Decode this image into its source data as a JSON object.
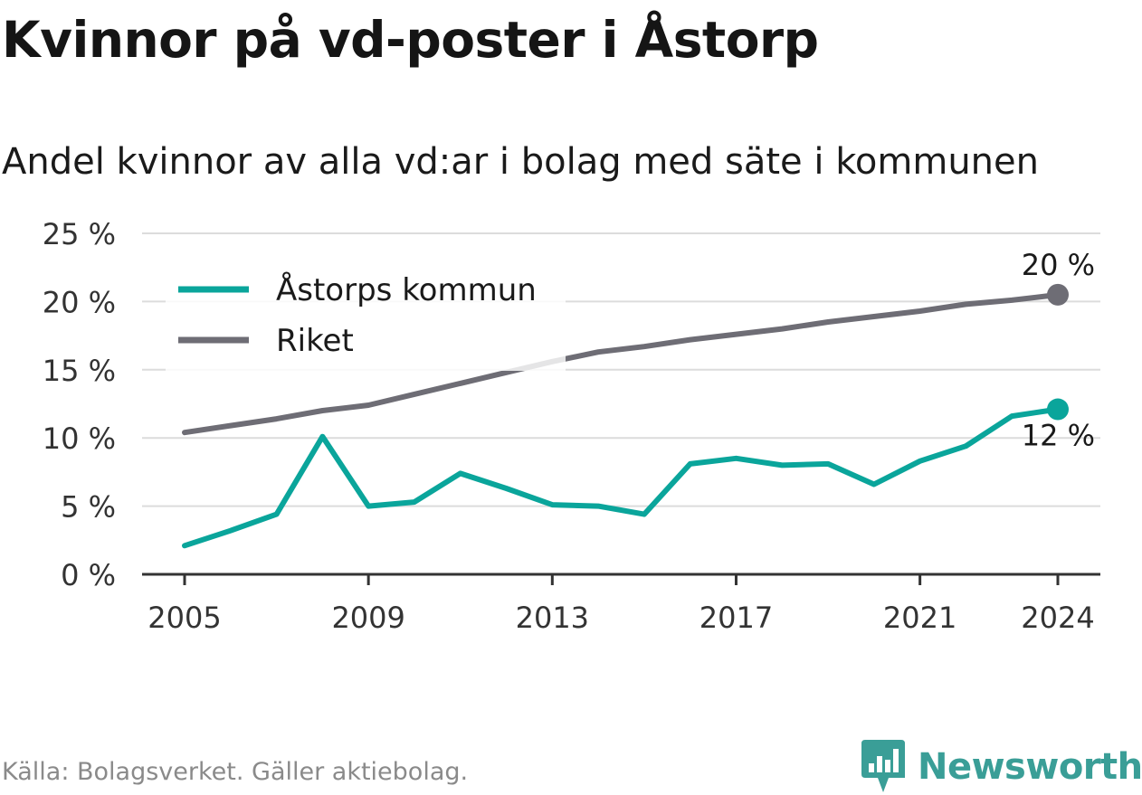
{
  "title": "Kvinnor på vd-poster i Åstorp",
  "subtitle": "Andel kvinnor av alla vd:ar i bolag med säte i kommunen",
  "source": "Källa: Bolagsverket. Gäller aktiebolag.",
  "brand": {
    "name": "Newsworthy",
    "logo_icon": "newsworthy-bar-chart-icon",
    "color": "#3a9e97"
  },
  "chart_data": {
    "type": "line",
    "x": [
      2005,
      2006,
      2007,
      2008,
      2009,
      2010,
      2011,
      2012,
      2013,
      2014,
      2015,
      2016,
      2017,
      2018,
      2019,
      2020,
      2021,
      2022,
      2023,
      2024
    ],
    "xticks": [
      2005,
      2009,
      2013,
      2017,
      2021,
      2024
    ],
    "ylim": [
      0,
      25
    ],
    "yticks": [
      0,
      5,
      10,
      15,
      20,
      25
    ],
    "ytick_labels": [
      "0 %",
      "5 %",
      "10 %",
      "15 %",
      "20 %",
      "25 %"
    ],
    "grid": true,
    "legend": "top-left",
    "series": [
      {
        "name": "Åstorps kommun",
        "color": "#0aa59b",
        "end_label": "12 %",
        "values": [
          2.1,
          3.2,
          4.4,
          10.1,
          5.0,
          5.3,
          7.4,
          6.3,
          5.1,
          5.0,
          4.4,
          8.1,
          8.5,
          8.0,
          8.1,
          6.6,
          8.3,
          9.4,
          11.6,
          12.1
        ]
      },
      {
        "name": "Riket",
        "color": "#6e6d75",
        "end_label": "20 %",
        "values": [
          10.4,
          10.9,
          11.4,
          12.0,
          12.4,
          13.2,
          14.0,
          14.8,
          15.6,
          16.3,
          16.7,
          17.2,
          17.6,
          18.0,
          18.5,
          18.9,
          19.3,
          19.8,
          20.1,
          20.5
        ]
      }
    ]
  }
}
